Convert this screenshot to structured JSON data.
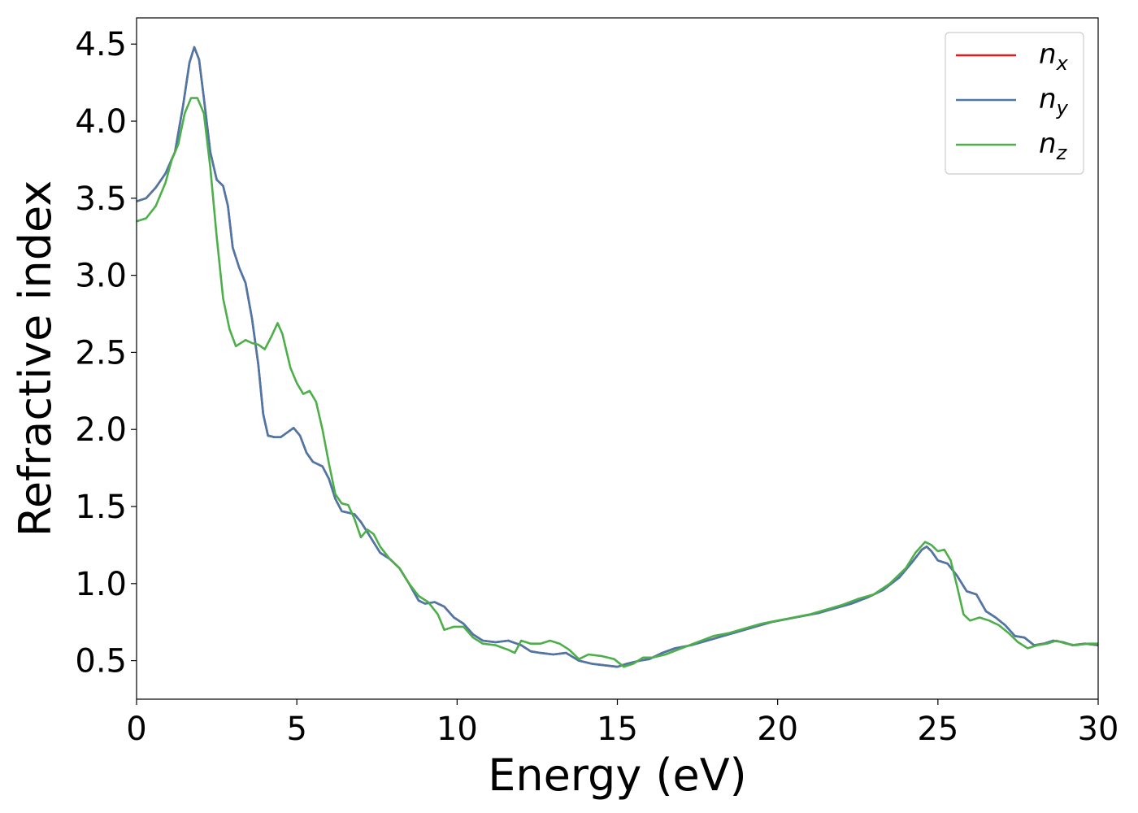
{
  "chart_data": {
    "type": "line",
    "title": "",
    "xlabel": "Energy (eV)",
    "ylabel": "Refractive index",
    "xlim": [
      0,
      30
    ],
    "ylim": [
      0.25,
      4.67
    ],
    "xticks": [
      "0",
      "5",
      "10",
      "15",
      "20",
      "25",
      "30"
    ],
    "yticks": [
      "0.5",
      "1.0",
      "1.5",
      "2.0",
      "2.5",
      "3.0",
      "3.5",
      "4.0",
      "4.5"
    ],
    "grid": false,
    "legend_position": "top-right",
    "series": [
      {
        "name": "n",
        "subscript": "x",
        "color": "#e41a1c",
        "points": [
          [
            0,
            3.48
          ],
          [
            0.3,
            3.5
          ],
          [
            0.6,
            3.57
          ],
          [
            0.9,
            3.66
          ],
          [
            1.2,
            3.8
          ],
          [
            1.45,
            4.1
          ],
          [
            1.65,
            4.38
          ],
          [
            1.8,
            4.48
          ],
          [
            1.95,
            4.4
          ],
          [
            2.1,
            4.15
          ],
          [
            2.3,
            3.8
          ],
          [
            2.5,
            3.62
          ],
          [
            2.7,
            3.58
          ],
          [
            2.85,
            3.45
          ],
          [
            3.0,
            3.18
          ],
          [
            3.2,
            3.05
          ],
          [
            3.4,
            2.95
          ],
          [
            3.6,
            2.72
          ],
          [
            3.8,
            2.42
          ],
          [
            3.95,
            2.1
          ],
          [
            4.1,
            1.96
          ],
          [
            4.3,
            1.95
          ],
          [
            4.5,
            1.95
          ],
          [
            4.7,
            1.98
          ],
          [
            4.9,
            2.01
          ],
          [
            5.1,
            1.96
          ],
          [
            5.3,
            1.85
          ],
          [
            5.5,
            1.79
          ],
          [
            5.8,
            1.76
          ],
          [
            6.0,
            1.68
          ],
          [
            6.2,
            1.55
          ],
          [
            6.4,
            1.47
          ],
          [
            6.6,
            1.46
          ],
          [
            6.8,
            1.45
          ],
          [
            7.0,
            1.4
          ],
          [
            7.3,
            1.3
          ],
          [
            7.6,
            1.2
          ],
          [
            7.9,
            1.16
          ],
          [
            8.2,
            1.1
          ],
          [
            8.5,
            1.0
          ],
          [
            8.8,
            0.89
          ],
          [
            9.0,
            0.87
          ],
          [
            9.3,
            0.88
          ],
          [
            9.6,
            0.85
          ],
          [
            9.9,
            0.78
          ],
          [
            10.2,
            0.74
          ],
          [
            10.5,
            0.67
          ],
          [
            10.8,
            0.63
          ],
          [
            11.2,
            0.62
          ],
          [
            11.6,
            0.63
          ],
          [
            12.0,
            0.6
          ],
          [
            12.3,
            0.56
          ],
          [
            12.6,
            0.55
          ],
          [
            13.0,
            0.54
          ],
          [
            13.4,
            0.55
          ],
          [
            13.8,
            0.5
          ],
          [
            14.2,
            0.48
          ],
          [
            14.6,
            0.47
          ],
          [
            15.0,
            0.46
          ],
          [
            15.3,
            0.48
          ],
          [
            15.7,
            0.5
          ],
          [
            16.0,
            0.51
          ],
          [
            16.4,
            0.55
          ],
          [
            16.8,
            0.58
          ],
          [
            17.3,
            0.6
          ],
          [
            17.8,
            0.63
          ],
          [
            18.3,
            0.66
          ],
          [
            18.8,
            0.69
          ],
          [
            19.3,
            0.72
          ],
          [
            19.8,
            0.75
          ],
          [
            20.3,
            0.77
          ],
          [
            20.8,
            0.79
          ],
          [
            21.3,
            0.81
          ],
          [
            21.8,
            0.84
          ],
          [
            22.3,
            0.87
          ],
          [
            22.8,
            0.91
          ],
          [
            23.3,
            0.96
          ],
          [
            23.8,
            1.04
          ],
          [
            24.2,
            1.14
          ],
          [
            24.5,
            1.22
          ],
          [
            24.65,
            1.24
          ],
          [
            24.8,
            1.21
          ],
          [
            25.0,
            1.15
          ],
          [
            25.3,
            1.13
          ],
          [
            25.6,
            1.05
          ],
          [
            25.9,
            0.95
          ],
          [
            26.2,
            0.93
          ],
          [
            26.5,
            0.82
          ],
          [
            26.8,
            0.78
          ],
          [
            27.1,
            0.73
          ],
          [
            27.4,
            0.66
          ],
          [
            27.7,
            0.65
          ],
          [
            28.0,
            0.6
          ],
          [
            28.3,
            0.61
          ],
          [
            28.6,
            0.63
          ],
          [
            28.9,
            0.62
          ],
          [
            29.2,
            0.6
          ],
          [
            29.6,
            0.61
          ],
          [
            30.0,
            0.6
          ]
        ]
      },
      {
        "name": "n",
        "subscript": "y",
        "color": "#4a78a8",
        "points": [
          [
            0,
            3.48
          ],
          [
            0.3,
            3.5
          ],
          [
            0.6,
            3.57
          ],
          [
            0.9,
            3.66
          ],
          [
            1.2,
            3.8
          ],
          [
            1.45,
            4.1
          ],
          [
            1.65,
            4.38
          ],
          [
            1.8,
            4.48
          ],
          [
            1.95,
            4.4
          ],
          [
            2.1,
            4.15
          ],
          [
            2.3,
            3.8
          ],
          [
            2.5,
            3.62
          ],
          [
            2.7,
            3.58
          ],
          [
            2.85,
            3.45
          ],
          [
            3.0,
            3.18
          ],
          [
            3.2,
            3.05
          ],
          [
            3.4,
            2.95
          ],
          [
            3.6,
            2.72
          ],
          [
            3.8,
            2.42
          ],
          [
            3.95,
            2.1
          ],
          [
            4.1,
            1.96
          ],
          [
            4.3,
            1.95
          ],
          [
            4.5,
            1.95
          ],
          [
            4.7,
            1.98
          ],
          [
            4.9,
            2.01
          ],
          [
            5.1,
            1.96
          ],
          [
            5.3,
            1.85
          ],
          [
            5.5,
            1.79
          ],
          [
            5.8,
            1.76
          ],
          [
            6.0,
            1.68
          ],
          [
            6.2,
            1.55
          ],
          [
            6.4,
            1.47
          ],
          [
            6.6,
            1.46
          ],
          [
            6.8,
            1.45
          ],
          [
            7.0,
            1.4
          ],
          [
            7.3,
            1.3
          ],
          [
            7.6,
            1.2
          ],
          [
            7.9,
            1.16
          ],
          [
            8.2,
            1.1
          ],
          [
            8.5,
            1.0
          ],
          [
            8.8,
            0.89
          ],
          [
            9.0,
            0.87
          ],
          [
            9.3,
            0.88
          ],
          [
            9.6,
            0.85
          ],
          [
            9.9,
            0.78
          ],
          [
            10.2,
            0.74
          ],
          [
            10.5,
            0.67
          ],
          [
            10.8,
            0.63
          ],
          [
            11.2,
            0.62
          ],
          [
            11.6,
            0.63
          ],
          [
            12.0,
            0.6
          ],
          [
            12.3,
            0.56
          ],
          [
            12.6,
            0.55
          ],
          [
            13.0,
            0.54
          ],
          [
            13.4,
            0.55
          ],
          [
            13.8,
            0.5
          ],
          [
            14.2,
            0.48
          ],
          [
            14.6,
            0.47
          ],
          [
            15.0,
            0.46
          ],
          [
            15.3,
            0.48
          ],
          [
            15.7,
            0.5
          ],
          [
            16.0,
            0.51
          ],
          [
            16.4,
            0.55
          ],
          [
            16.8,
            0.58
          ],
          [
            17.3,
            0.6
          ],
          [
            17.8,
            0.63
          ],
          [
            18.3,
            0.66
          ],
          [
            18.8,
            0.69
          ],
          [
            19.3,
            0.72
          ],
          [
            19.8,
            0.75
          ],
          [
            20.3,
            0.77
          ],
          [
            20.8,
            0.79
          ],
          [
            21.3,
            0.81
          ],
          [
            21.8,
            0.84
          ],
          [
            22.3,
            0.87
          ],
          [
            22.8,
            0.91
          ],
          [
            23.3,
            0.96
          ],
          [
            23.8,
            1.04
          ],
          [
            24.2,
            1.14
          ],
          [
            24.5,
            1.22
          ],
          [
            24.65,
            1.24
          ],
          [
            24.8,
            1.21
          ],
          [
            25.0,
            1.15
          ],
          [
            25.3,
            1.13
          ],
          [
            25.6,
            1.05
          ],
          [
            25.9,
            0.95
          ],
          [
            26.2,
            0.93
          ],
          [
            26.5,
            0.82
          ],
          [
            26.8,
            0.78
          ],
          [
            27.1,
            0.73
          ],
          [
            27.4,
            0.66
          ],
          [
            27.7,
            0.65
          ],
          [
            28.0,
            0.6
          ],
          [
            28.3,
            0.61
          ],
          [
            28.6,
            0.63
          ],
          [
            28.9,
            0.62
          ],
          [
            29.2,
            0.6
          ],
          [
            29.6,
            0.61
          ],
          [
            30.0,
            0.6
          ]
        ]
      },
      {
        "name": "n",
        "subscript": "z",
        "color": "#4daf4a",
        "points": [
          [
            0,
            3.35
          ],
          [
            0.3,
            3.37
          ],
          [
            0.6,
            3.45
          ],
          [
            0.9,
            3.6
          ],
          [
            1.1,
            3.75
          ],
          [
            1.3,
            3.85
          ],
          [
            1.5,
            4.05
          ],
          [
            1.7,
            4.15
          ],
          [
            1.9,
            4.15
          ],
          [
            2.1,
            4.05
          ],
          [
            2.3,
            3.7
          ],
          [
            2.5,
            3.25
          ],
          [
            2.7,
            2.85
          ],
          [
            2.9,
            2.65
          ],
          [
            3.1,
            2.54
          ],
          [
            3.4,
            2.58
          ],
          [
            3.6,
            2.56
          ],
          [
            3.8,
            2.55
          ],
          [
            4.0,
            2.52
          ],
          [
            4.2,
            2.6
          ],
          [
            4.4,
            2.69
          ],
          [
            4.55,
            2.62
          ],
          [
            4.8,
            2.4
          ],
          [
            5.0,
            2.3
          ],
          [
            5.2,
            2.23
          ],
          [
            5.4,
            2.25
          ],
          [
            5.6,
            2.18
          ],
          [
            5.8,
            2.0
          ],
          [
            6.0,
            1.78
          ],
          [
            6.2,
            1.58
          ],
          [
            6.4,
            1.52
          ],
          [
            6.6,
            1.51
          ],
          [
            6.8,
            1.42
          ],
          [
            7.0,
            1.3
          ],
          [
            7.2,
            1.35
          ],
          [
            7.4,
            1.32
          ],
          [
            7.6,
            1.24
          ],
          [
            7.9,
            1.16
          ],
          [
            8.2,
            1.1
          ],
          [
            8.5,
            1.0
          ],
          [
            8.8,
            0.92
          ],
          [
            9.1,
            0.88
          ],
          [
            9.4,
            0.8
          ],
          [
            9.6,
            0.7
          ],
          [
            9.9,
            0.72
          ],
          [
            10.2,
            0.72
          ],
          [
            10.5,
            0.65
          ],
          [
            10.8,
            0.61
          ],
          [
            11.2,
            0.6
          ],
          [
            11.6,
            0.57
          ],
          [
            11.8,
            0.55
          ],
          [
            12.0,
            0.63
          ],
          [
            12.3,
            0.61
          ],
          [
            12.6,
            0.61
          ],
          [
            12.9,
            0.63
          ],
          [
            13.2,
            0.61
          ],
          [
            13.5,
            0.57
          ],
          [
            13.8,
            0.51
          ],
          [
            14.1,
            0.54
          ],
          [
            14.5,
            0.53
          ],
          [
            14.9,
            0.51
          ],
          [
            15.2,
            0.46
          ],
          [
            15.5,
            0.48
          ],
          [
            15.8,
            0.52
          ],
          [
            16.1,
            0.52
          ],
          [
            16.5,
            0.54
          ],
          [
            17.0,
            0.58
          ],
          [
            17.5,
            0.62
          ],
          [
            18.0,
            0.66
          ],
          [
            18.5,
            0.68
          ],
          [
            19.0,
            0.71
          ],
          [
            19.5,
            0.74
          ],
          [
            20.0,
            0.76
          ],
          [
            20.5,
            0.78
          ],
          [
            21.0,
            0.8
          ],
          [
            21.5,
            0.83
          ],
          [
            22.0,
            0.86
          ],
          [
            22.5,
            0.9
          ],
          [
            23.0,
            0.93
          ],
          [
            23.5,
            1.0
          ],
          [
            24.0,
            1.1
          ],
          [
            24.3,
            1.2
          ],
          [
            24.6,
            1.27
          ],
          [
            24.8,
            1.25
          ],
          [
            25.0,
            1.21
          ],
          [
            25.2,
            1.22
          ],
          [
            25.4,
            1.15
          ],
          [
            25.6,
            0.98
          ],
          [
            25.8,
            0.8
          ],
          [
            26.0,
            0.76
          ],
          [
            26.3,
            0.78
          ],
          [
            26.6,
            0.76
          ],
          [
            26.9,
            0.73
          ],
          [
            27.2,
            0.68
          ],
          [
            27.5,
            0.62
          ],
          [
            27.8,
            0.58
          ],
          [
            28.1,
            0.6
          ],
          [
            28.4,
            0.61
          ],
          [
            28.7,
            0.63
          ],
          [
            29.0,
            0.61
          ],
          [
            29.3,
            0.6
          ],
          [
            29.7,
            0.61
          ],
          [
            30.0,
            0.61
          ]
        ]
      }
    ]
  }
}
